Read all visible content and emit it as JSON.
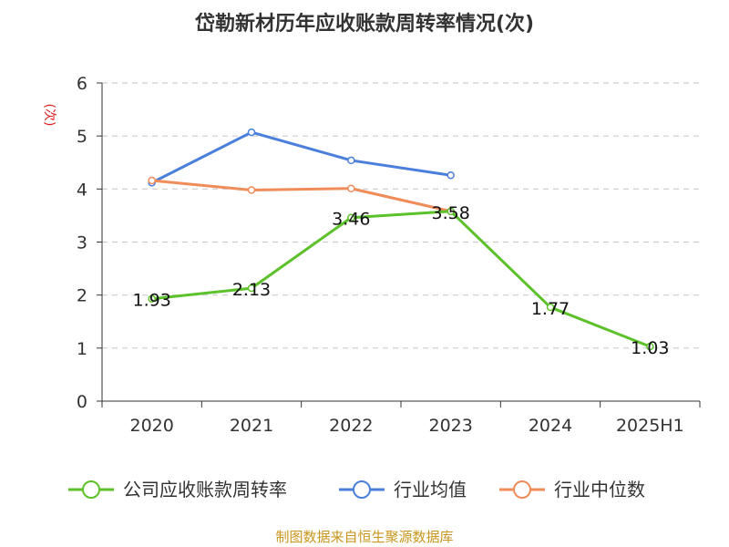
{
  "chart_data": {
    "type": "line",
    "title": "岱勒新材历年应收账款周转率情况(次)",
    "ylabel": "(次)",
    "xlabel": "",
    "categories": [
      "2020",
      "2021",
      "2022",
      "2023",
      "2024",
      "2025H1"
    ],
    "ylim": [
      0,
      6
    ],
    "yticks": [
      0,
      1,
      2,
      3,
      4,
      5,
      6
    ],
    "grid": true,
    "legend_position": "bottom",
    "series": [
      {
        "name": "公司应收账款周转率",
        "color": "#5cc12a",
        "values": [
          1.93,
          2.13,
          3.46,
          3.58,
          1.77,
          1.03
        ],
        "labels": [
          "1.93",
          "2.13",
          "3.46",
          "3.58",
          "1.77",
          "1.03"
        ]
      },
      {
        "name": "行业均值",
        "color": "#4a7fdc",
        "values": [
          4.12,
          5.07,
          4.54,
          4.26,
          null,
          null
        ]
      },
      {
        "name": "行业中位数",
        "color": "#f08c5a",
        "values": [
          4.16,
          3.98,
          4.01,
          3.58,
          null,
          null
        ]
      }
    ]
  },
  "source": "制图数据来自恒生聚源数据库"
}
